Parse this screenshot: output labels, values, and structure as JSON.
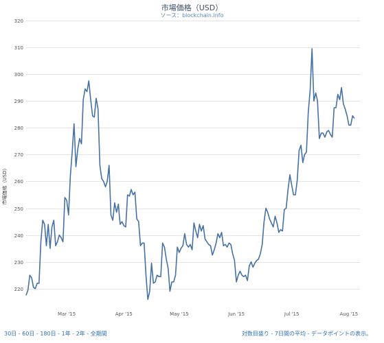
{
  "chart_data": {
    "type": "line",
    "title": "市場価格（USD）",
    "subtitle": "ソース：blockchain.info",
    "ylabel": "市場価格（USD）",
    "xlabel": "",
    "ylim": [
      212,
      320
    ],
    "yticks": [
      220,
      230,
      240,
      250,
      260,
      270,
      280,
      290,
      300,
      310,
      320
    ],
    "xticks": [
      {
        "label": "Mar '15",
        "date": "2015-03-01"
      },
      {
        "label": "Apr '15",
        "date": "2015-04-01"
      },
      {
        "label": "May '15",
        "date": "2015-05-01"
      },
      {
        "label": "Jun '15",
        "date": "2015-06-01"
      },
      {
        "label": "Jul '15",
        "date": "2015-07-01"
      },
      {
        "label": "Aug '15",
        "date": "2015-08-01"
      }
    ],
    "grid": true,
    "series": [
      {
        "name": "",
        "color": "#4671a5",
        "points": [
          [
            "2015-02-07",
            217.5
          ],
          [
            "2015-02-08",
            219.5
          ],
          [
            "2015-02-09",
            225.0
          ],
          [
            "2015-02-10",
            224.0
          ],
          [
            "2015-02-11",
            220.5
          ],
          [
            "2015-02-12",
            220.0
          ],
          [
            "2015-02-13",
            222.0
          ],
          [
            "2015-02-14",
            222.0
          ],
          [
            "2015-02-15",
            237.5
          ],
          [
            "2015-02-16",
            245.5
          ],
          [
            "2015-02-17",
            244.0
          ],
          [
            "2015-02-18",
            236.0
          ],
          [
            "2015-02-19",
            244.0
          ],
          [
            "2015-02-20",
            235.0
          ],
          [
            "2015-02-21",
            243.0
          ],
          [
            "2015-02-22",
            245.5
          ],
          [
            "2015-02-23",
            236.0
          ],
          [
            "2015-02-24",
            237.5
          ],
          [
            "2015-02-25",
            240.0
          ],
          [
            "2015-02-26",
            239.0
          ],
          [
            "2015-02-27",
            237.5
          ],
          [
            "2015-02-28",
            254.0
          ],
          [
            "2015-03-01",
            253.0
          ],
          [
            "2015-03-02",
            247.5
          ],
          [
            "2015-03-03",
            262.0
          ],
          [
            "2015-03-04",
            271.0
          ],
          [
            "2015-03-05",
            281.5
          ],
          [
            "2015-03-06",
            265.5
          ],
          [
            "2015-03-07",
            272.0
          ],
          [
            "2015-03-08",
            276.0
          ],
          [
            "2015-03-09",
            274.0
          ],
          [
            "2015-03-10",
            290.5
          ],
          [
            "2015-03-11",
            294.5
          ],
          [
            "2015-03-12",
            293.5
          ],
          [
            "2015-03-13",
            297.5
          ],
          [
            "2015-03-14",
            290.5
          ],
          [
            "2015-03-15",
            284.5
          ],
          [
            "2015-03-16",
            284.0
          ],
          [
            "2015-03-17",
            291.0
          ],
          [
            "2015-03-18",
            287.0
          ],
          [
            "2015-03-19",
            266.0
          ],
          [
            "2015-03-20",
            261.0
          ],
          [
            "2015-03-21",
            260.0
          ],
          [
            "2015-03-22",
            258.0
          ],
          [
            "2015-03-23",
            260.0
          ],
          [
            "2015-03-24",
            266.0
          ],
          [
            "2015-03-25",
            247.5
          ],
          [
            "2015-03-26",
            245.5
          ],
          [
            "2015-03-27",
            252.0
          ],
          [
            "2015-03-28",
            248.5
          ],
          [
            "2015-03-29",
            251.5
          ],
          [
            "2015-03-30",
            244.0
          ],
          [
            "2015-03-31",
            245.0
          ],
          [
            "2015-04-01",
            243.5
          ],
          [
            "2015-04-02",
            243.0
          ],
          [
            "2015-04-03",
            255.0
          ],
          [
            "2015-04-04",
            254.5
          ],
          [
            "2015-04-05",
            257.0
          ],
          [
            "2015-04-06",
            255.0
          ],
          [
            "2015-04-07",
            256.0
          ],
          [
            "2015-04-08",
            246.0
          ],
          [
            "2015-04-09",
            245.0
          ],
          [
            "2015-04-10",
            236.0
          ],
          [
            "2015-04-11",
            237.0
          ],
          [
            "2015-04-12",
            237.0
          ],
          [
            "2015-04-13",
            225.0
          ],
          [
            "2015-04-14",
            216.0
          ],
          [
            "2015-04-15",
            219.0
          ],
          [
            "2015-04-16",
            229.5
          ],
          [
            "2015-04-17",
            222.0
          ],
          [
            "2015-04-18",
            222.5
          ],
          [
            "2015-04-19",
            225.0
          ],
          [
            "2015-04-20",
            224.5
          ],
          [
            "2015-04-21",
            224.5
          ],
          [
            "2015-04-22",
            237.0
          ],
          [
            "2015-04-23",
            235.5
          ],
          [
            "2015-04-24",
            231.0
          ],
          [
            "2015-04-25",
            227.5
          ],
          [
            "2015-04-26",
            219.0
          ],
          [
            "2015-04-27",
            222.5
          ],
          [
            "2015-04-28",
            222.5
          ],
          [
            "2015-04-29",
            225.0
          ],
          [
            "2015-04-30",
            235.5
          ],
          [
            "2015-05-01",
            233.5
          ],
          [
            "2015-05-02",
            235.0
          ],
          [
            "2015-05-03",
            236.0
          ],
          [
            "2015-05-04",
            240.5
          ],
          [
            "2015-05-05",
            236.5
          ],
          [
            "2015-05-06",
            235.5
          ],
          [
            "2015-05-07",
            236.5
          ],
          [
            "2015-05-08",
            234.5
          ],
          [
            "2015-05-09",
            244.5
          ],
          [
            "2015-05-10",
            241.5
          ],
          [
            "2015-05-11",
            239.0
          ],
          [
            "2015-05-12",
            244.0
          ],
          [
            "2015-05-13",
            241.5
          ],
          [
            "2015-05-14",
            243.5
          ],
          [
            "2015-05-15",
            238.5
          ],
          [
            "2015-05-16",
            237.5
          ],
          [
            "2015-05-17",
            236.5
          ],
          [
            "2015-05-18",
            236.0
          ],
          [
            "2015-05-19",
            232.5
          ],
          [
            "2015-05-20",
            234.5
          ],
          [
            "2015-05-21",
            237.0
          ],
          [
            "2015-05-22",
            240.5
          ],
          [
            "2015-05-23",
            239.0
          ],
          [
            "2015-05-24",
            241.0
          ],
          [
            "2015-05-25",
            236.0
          ],
          [
            "2015-05-26",
            236.5
          ],
          [
            "2015-05-27",
            235.5
          ],
          [
            "2015-05-28",
            237.0
          ],
          [
            "2015-05-29",
            236.5
          ],
          [
            "2015-05-30",
            233.0
          ],
          [
            "2015-05-31",
            230.5
          ],
          [
            "2015-06-01",
            222.5
          ],
          [
            "2015-06-02",
            225.0
          ],
          [
            "2015-06-03",
            226.5
          ],
          [
            "2015-06-04",
            225.0
          ],
          [
            "2015-06-05",
            224.5
          ],
          [
            "2015-06-06",
            225.0
          ],
          [
            "2015-06-07",
            223.0
          ],
          [
            "2015-06-08",
            228.5
          ],
          [
            "2015-06-09",
            230.0
          ],
          [
            "2015-06-10",
            228.0
          ],
          [
            "2015-06-11",
            229.5
          ],
          [
            "2015-06-12",
            230.5
          ],
          [
            "2015-06-13",
            231.0
          ],
          [
            "2015-06-14",
            233.0
          ],
          [
            "2015-06-15",
            236.5
          ],
          [
            "2015-06-16",
            245.0
          ],
          [
            "2015-06-17",
            250.0
          ],
          [
            "2015-06-18",
            248.5
          ],
          [
            "2015-06-19",
            246.0
          ],
          [
            "2015-06-20",
            244.5
          ],
          [
            "2015-06-21",
            243.0
          ],
          [
            "2015-06-22",
            247.0
          ],
          [
            "2015-06-23",
            244.5
          ],
          [
            "2015-06-24",
            241.0
          ],
          [
            "2015-06-25",
            242.0
          ],
          [
            "2015-06-26",
            241.5
          ],
          [
            "2015-06-27",
            249.5
          ],
          [
            "2015-06-28",
            250.0
          ],
          [
            "2015-06-29",
            257.0
          ],
          [
            "2015-06-30",
            262.5
          ],
          [
            "2015-07-01",
            258.5
          ],
          [
            "2015-07-02",
            255.0
          ],
          [
            "2015-07-03",
            255.0
          ],
          [
            "2015-07-04",
            260.5
          ],
          [
            "2015-07-05",
            271.5
          ],
          [
            "2015-07-06",
            273.5
          ],
          [
            "2015-07-07",
            267.0
          ],
          [
            "2015-07-08",
            270.0
          ],
          [
            "2015-07-09",
            271.0
          ],
          [
            "2015-07-10",
            286.0
          ],
          [
            "2015-07-11",
            294.0
          ],
          [
            "2015-07-12",
            309.5
          ],
          [
            "2015-07-13",
            290.0
          ],
          [
            "2015-07-14",
            293.0
          ],
          [
            "2015-07-15",
            290.0
          ],
          [
            "2015-07-16",
            276.0
          ],
          [
            "2015-07-17",
            278.0
          ],
          [
            "2015-07-18",
            278.0
          ],
          [
            "2015-07-19",
            276.5
          ],
          [
            "2015-07-20",
            278.5
          ],
          [
            "2015-07-21",
            279.0
          ],
          [
            "2015-07-22",
            277.5
          ],
          [
            "2015-07-23",
            276.5
          ],
          [
            "2015-07-24",
            287.5
          ],
          [
            "2015-07-25",
            287.5
          ],
          [
            "2015-07-26",
            292.5
          ],
          [
            "2015-07-27",
            290.5
          ],
          [
            "2015-07-28",
            295.0
          ],
          [
            "2015-07-29",
            289.0
          ],
          [
            "2015-07-30",
            287.0
          ],
          [
            "2015-07-31",
            284.5
          ],
          [
            "2015-08-01",
            281.0
          ],
          [
            "2015-08-02",
            281.0
          ],
          [
            "2015-08-03",
            284.5
          ],
          [
            "2015-08-04",
            283.5
          ]
        ]
      }
    ]
  },
  "footer": {
    "left": [
      "30日",
      "60日",
      "180日",
      "1年",
      "2年",
      "全期間"
    ],
    "left_sep": " - ",
    "right": [
      "対数目盛り",
      "7日間の平均",
      "データポイントの表示"
    ],
    "right_sep": " - ",
    "right_suffix": "。"
  }
}
